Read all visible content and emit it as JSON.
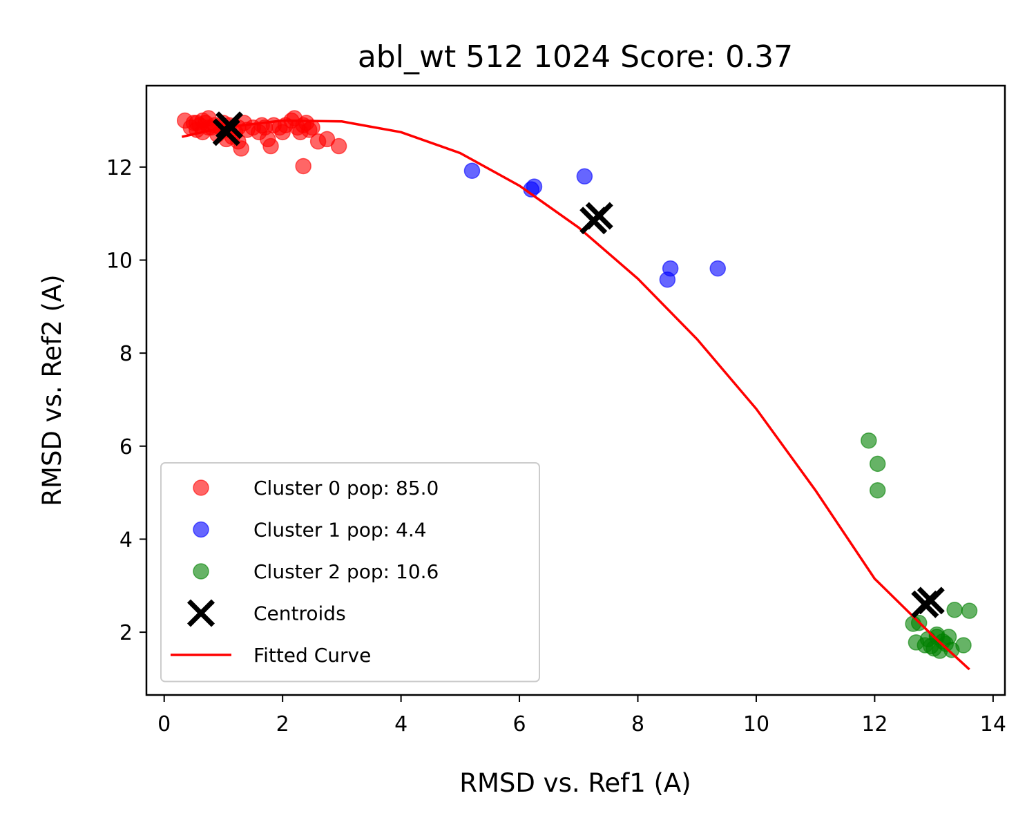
{
  "chart_data": {
    "type": "scatter",
    "title": "abl_wt 512 1024 Score: 0.37",
    "xlabel": "RMSD vs. Ref1 (A)",
    "ylabel": "RMSD vs. Ref2 (A)",
    "xlim": [
      -0.3,
      14.2
    ],
    "ylim": [
      0.65,
      13.75
    ],
    "xticks": [
      0,
      2,
      4,
      6,
      8,
      10,
      12,
      14
    ],
    "yticks": [
      2,
      4,
      6,
      8,
      10,
      12
    ],
    "grid": false,
    "legend_position": "lower-left",
    "series": [
      {
        "name": "Cluster 0 pop: 85.0",
        "color": "#ff0000",
        "marker": "circle",
        "points": [
          [
            0.35,
            13.0
          ],
          [
            0.45,
            12.85
          ],
          [
            0.5,
            12.95
          ],
          [
            0.55,
            12.8
          ],
          [
            0.6,
            12.9
          ],
          [
            0.65,
            12.75
          ],
          [
            0.7,
            12.95
          ],
          [
            0.75,
            13.05
          ],
          [
            0.8,
            12.85
          ],
          [
            0.85,
            12.9
          ],
          [
            0.9,
            12.7
          ],
          [
            0.95,
            12.85
          ],
          [
            1.0,
            12.95
          ],
          [
            1.05,
            12.8
          ],
          [
            1.1,
            12.9
          ],
          [
            1.15,
            12.65
          ],
          [
            1.2,
            12.75
          ],
          [
            1.25,
            12.55
          ],
          [
            1.3,
            12.4
          ],
          [
            1.35,
            12.95
          ],
          [
            1.4,
            12.8
          ],
          [
            1.5,
            12.85
          ],
          [
            1.6,
            12.75
          ],
          [
            1.65,
            12.9
          ],
          [
            1.7,
            12.85
          ],
          [
            1.75,
            12.6
          ],
          [
            1.8,
            12.45
          ],
          [
            1.85,
            12.9
          ],
          [
            1.95,
            12.85
          ],
          [
            2.0,
            12.75
          ],
          [
            2.05,
            12.9
          ],
          [
            2.15,
            13.0
          ],
          [
            2.2,
            13.05
          ],
          [
            2.25,
            12.85
          ],
          [
            2.3,
            12.75
          ],
          [
            2.35,
            12.9
          ],
          [
            2.4,
            12.95
          ],
          [
            2.45,
            12.8
          ],
          [
            2.5,
            12.85
          ],
          [
            2.6,
            12.55
          ],
          [
            2.75,
            12.6
          ],
          [
            2.95,
            12.45
          ],
          [
            2.35,
            12.02
          ],
          [
            0.55,
            12.95
          ],
          [
            0.75,
            12.85
          ],
          [
            1.05,
            12.6
          ],
          [
            1.25,
            12.85
          ],
          [
            0.65,
            13.0
          ]
        ]
      },
      {
        "name": "Cluster 1 pop: 4.4",
        "color": "#0000ff",
        "marker": "circle",
        "points": [
          [
            5.2,
            11.92
          ],
          [
            6.2,
            11.52
          ],
          [
            6.25,
            11.58
          ],
          [
            7.1,
            11.8
          ],
          [
            8.5,
            9.58
          ],
          [
            8.55,
            9.82
          ],
          [
            9.35,
            9.82
          ]
        ]
      },
      {
        "name": "Cluster 2 pop: 10.6",
        "color": "#008000",
        "marker": "circle",
        "points": [
          [
            11.9,
            6.12
          ],
          [
            12.05,
            5.62
          ],
          [
            12.05,
            5.05
          ],
          [
            12.65,
            2.18
          ],
          [
            12.7,
            1.78
          ],
          [
            12.75,
            2.2
          ],
          [
            12.85,
            1.72
          ],
          [
            12.9,
            1.85
          ],
          [
            12.95,
            1.7
          ],
          [
            13.0,
            1.65
          ],
          [
            13.05,
            1.9
          ],
          [
            13.1,
            1.6
          ],
          [
            13.15,
            1.8
          ],
          [
            13.2,
            1.75
          ],
          [
            13.25,
            1.9
          ],
          [
            13.3,
            1.62
          ],
          [
            13.35,
            2.48
          ],
          [
            13.5,
            1.72
          ],
          [
            13.6,
            2.46
          ],
          [
            13.05,
            1.95
          ]
        ]
      },
      {
        "name": "Centroids",
        "color": "#000000",
        "marker": "x",
        "points": [
          [
            1.05,
            12.75
          ],
          [
            1.1,
            12.9
          ],
          [
            7.25,
            10.85
          ],
          [
            7.35,
            10.95
          ],
          [
            12.85,
            2.6
          ],
          [
            12.95,
            2.68
          ]
        ]
      },
      {
        "name": "Fitted Curve",
        "color": "#ff0000",
        "marker": "line",
        "curve": {
          "x": [
            0.3,
            1.0,
            2.0,
            3.0,
            4.0,
            5.0,
            6.0,
            7.0,
            8.0,
            9.0,
            10.0,
            11.0,
            12.0,
            13.0,
            13.6
          ],
          "y": [
            12.65,
            12.85,
            13.0,
            12.98,
            12.75,
            12.3,
            11.6,
            10.7,
            9.6,
            8.3,
            6.8,
            5.05,
            3.15,
            1.9,
            1.2
          ]
        }
      }
    ]
  }
}
